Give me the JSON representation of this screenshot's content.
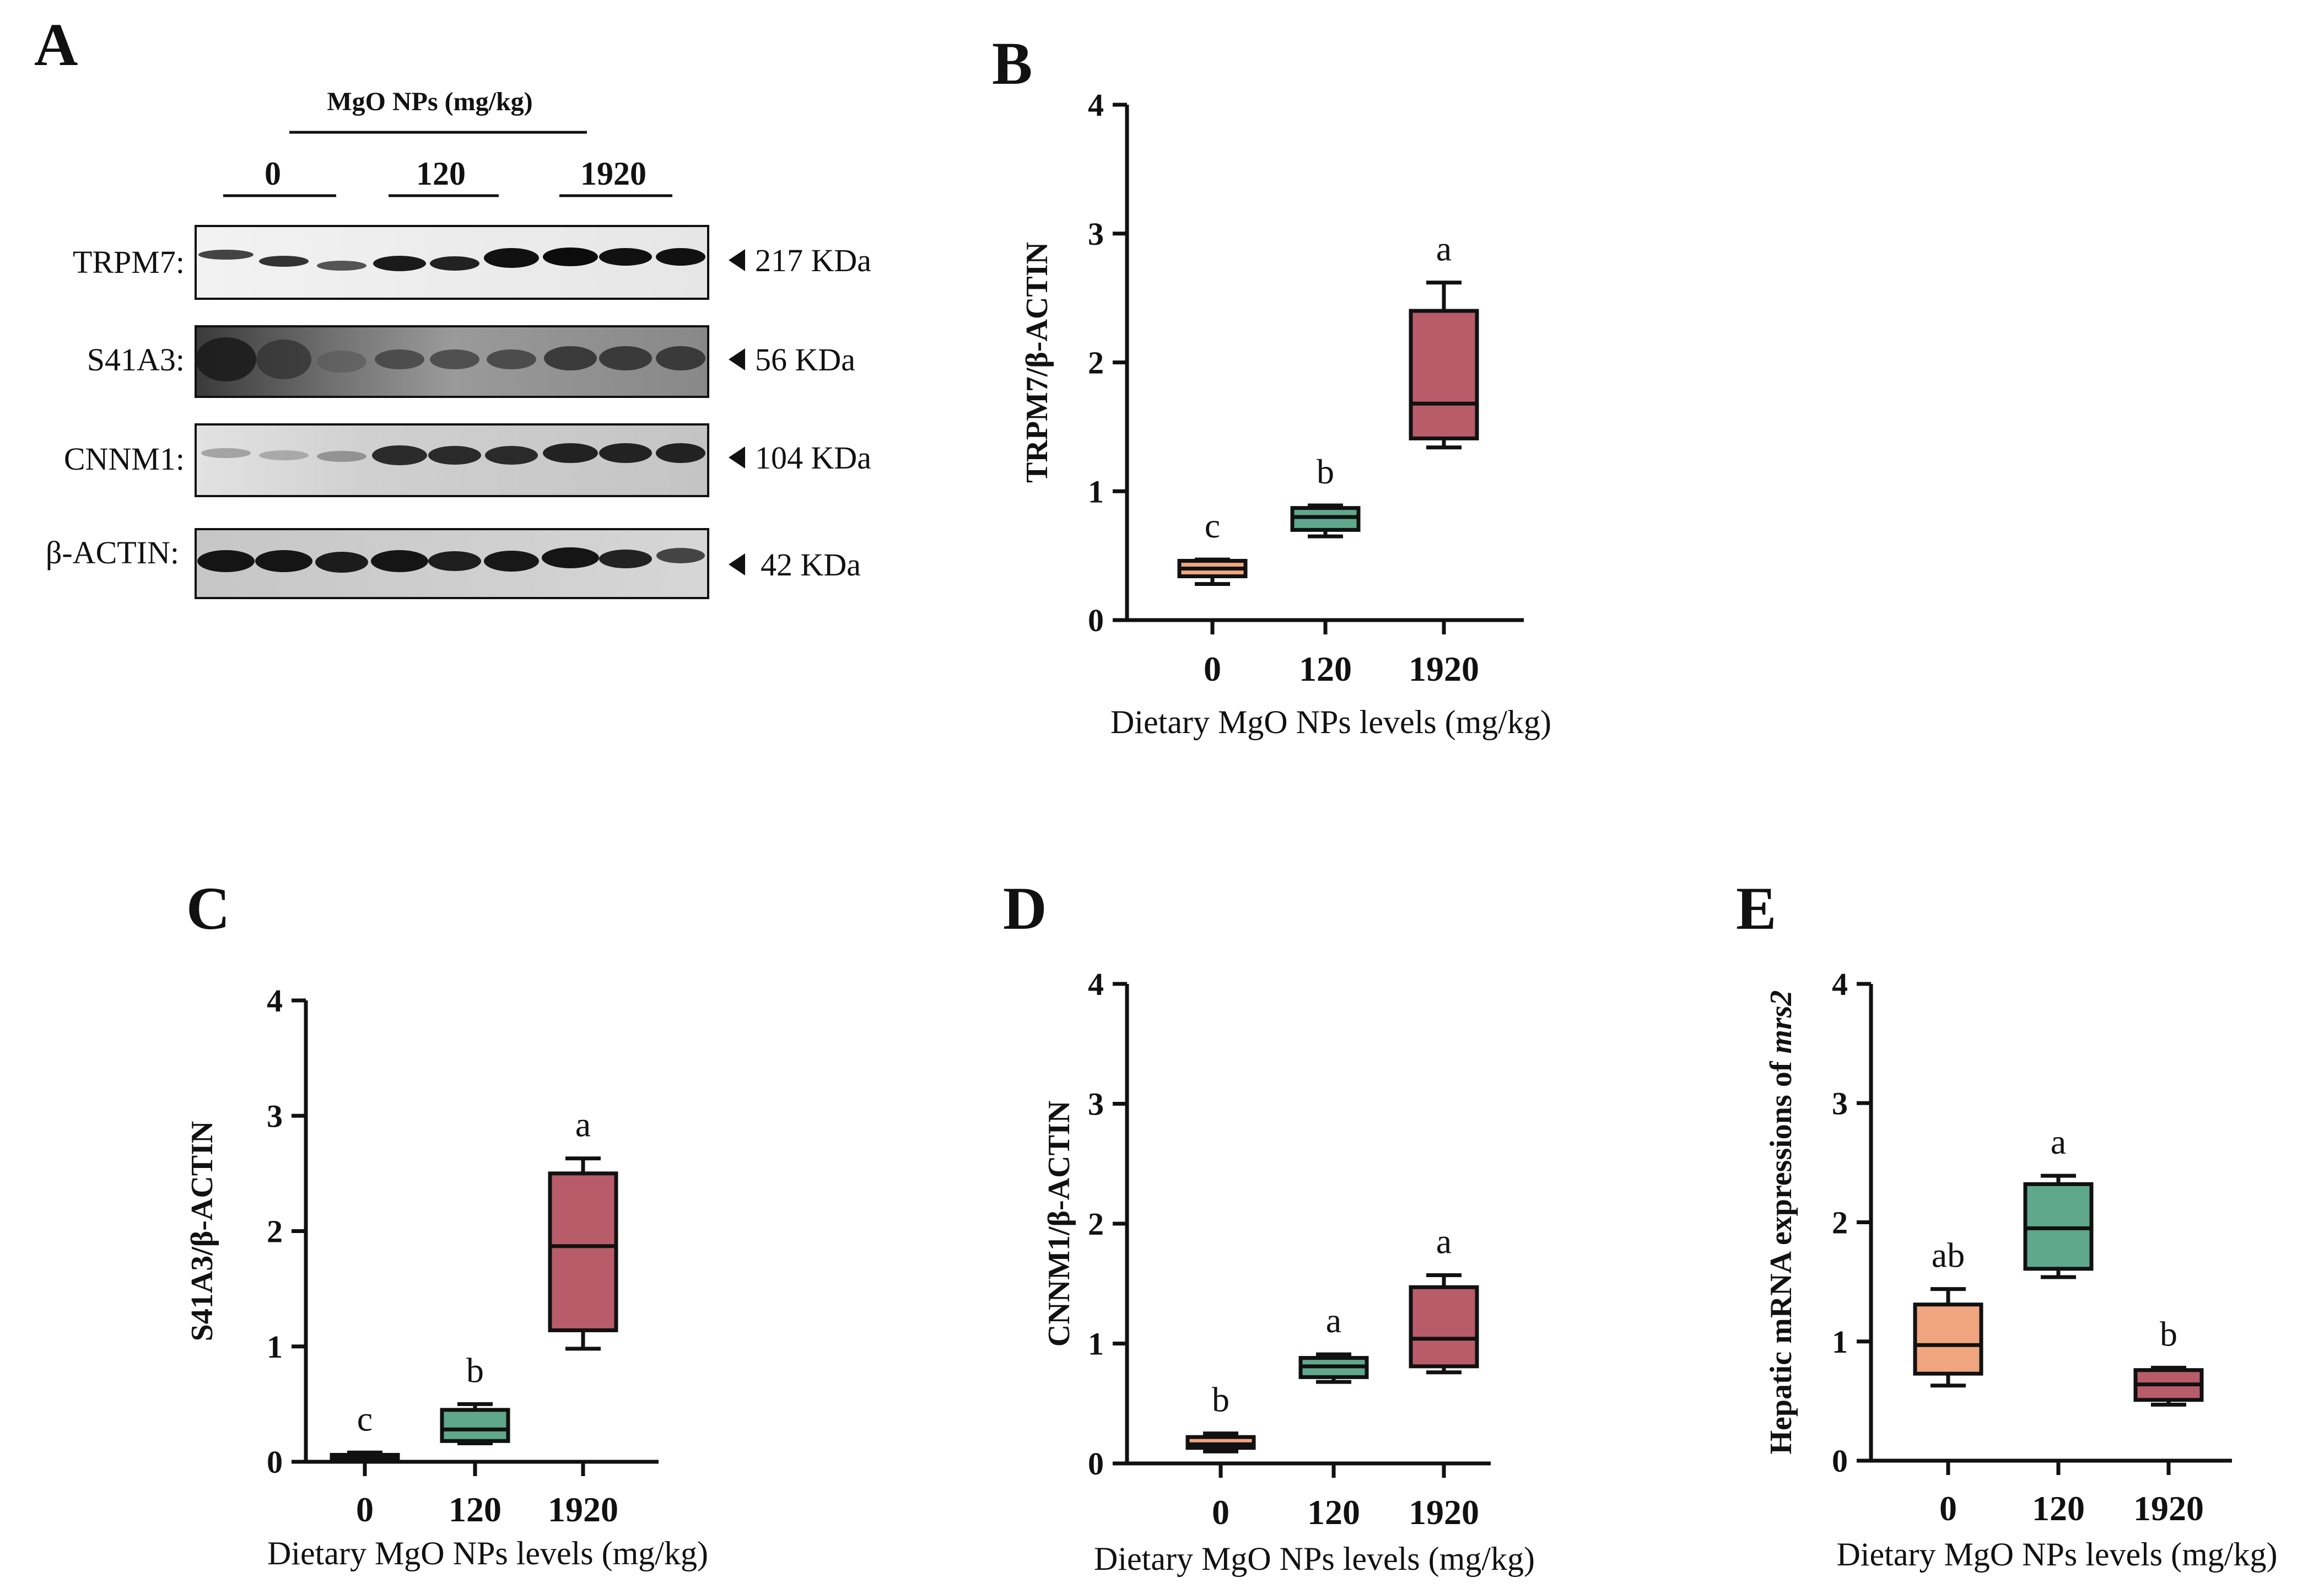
{
  "figure": {
    "panel_a": {
      "letter": "A",
      "treatment_header": "MgO NPs (mg/kg)",
      "groups": [
        "0",
        "120",
        "1920"
      ],
      "blots": [
        {
          "label": "TRPM7:",
          "size": "217 KDa"
        },
        {
          "label": "S41A3:",
          "size": "56 KDa"
        },
        {
          "label": "CNNM1:",
          "size": "104 KDa"
        },
        {
          "label": "β-ACTIN:",
          "size": "42 KDa"
        }
      ]
    },
    "panel_letters": {
      "b": "B",
      "c": "C",
      "d": "D",
      "e": "E"
    },
    "colors": {
      "g0": "#EFA67F",
      "g120": "#5FA88E",
      "g1920": "#B85C6A",
      "stroke": "#111111"
    }
  },
  "chart_data": [
    {
      "panel": "B",
      "type": "box",
      "categories": [
        "0",
        "120",
        "1920"
      ],
      "xlabel": "Dietary MgO NPs levels (mg/kg)",
      "ylabel": "TRPM7/β-ACTIN",
      "ylim": [
        0,
        4
      ],
      "yticks": [
        0,
        1,
        2,
        3,
        4
      ],
      "boxes": [
        {
          "min": 0.28,
          "q1": 0.34,
          "median": 0.4,
          "q3": 0.46,
          "max": 0.47,
          "letter": "c"
        },
        {
          "min": 0.65,
          "q1": 0.7,
          "median": 0.8,
          "q3": 0.87,
          "max": 0.89,
          "letter": "b"
        },
        {
          "min": 1.34,
          "q1": 1.41,
          "median": 1.68,
          "q3": 2.4,
          "max": 2.62,
          "letter": "a"
        }
      ]
    },
    {
      "panel": "C",
      "type": "box",
      "categories": [
        "0",
        "120",
        "1920"
      ],
      "xlabel": "Dietary MgO NPs levels (mg/kg)",
      "ylabel": "S41A3/β-ACTIN",
      "ylim": [
        0,
        4
      ],
      "yticks": [
        0,
        1,
        2,
        3,
        4
      ],
      "boxes": [
        {
          "min": 0.01,
          "q1": 0.02,
          "median": 0.04,
          "q3": 0.06,
          "max": 0.08,
          "letter": "c"
        },
        {
          "min": 0.16,
          "q1": 0.18,
          "median": 0.28,
          "q3": 0.45,
          "max": 0.5,
          "letter": "b"
        },
        {
          "min": 0.98,
          "q1": 1.14,
          "median": 1.87,
          "q3": 2.5,
          "max": 2.63,
          "letter": "a"
        }
      ]
    },
    {
      "panel": "D",
      "type": "box",
      "categories": [
        "0",
        "120",
        "1920"
      ],
      "xlabel": "Dietary MgO NPs levels (mg/kg)",
      "ylabel": "CNNM1/β-ACTIN",
      "ylim": [
        0,
        4
      ],
      "yticks": [
        0,
        1,
        2,
        3,
        4
      ],
      "boxes": [
        {
          "min": 0.1,
          "q1": 0.13,
          "median": 0.16,
          "q3": 0.22,
          "max": 0.25,
          "letter": "b"
        },
        {
          "min": 0.68,
          "q1": 0.72,
          "median": 0.81,
          "q3": 0.88,
          "max": 0.91,
          "letter": "a"
        },
        {
          "min": 0.76,
          "q1": 0.81,
          "median": 1.04,
          "q3": 1.47,
          "max": 1.57,
          "letter": "a"
        }
      ]
    },
    {
      "panel": "E",
      "type": "box",
      "categories": [
        "0",
        "120",
        "1920"
      ],
      "xlabel": "Dietary MgO NPs levels (mg/kg)",
      "ylabel": "Hepatic mRNA expressions of ",
      "ylabel_italic": "mrs2",
      "ylim": [
        0,
        4
      ],
      "yticks": [
        0,
        1,
        2,
        3,
        4
      ],
      "boxes": [
        {
          "min": 0.63,
          "q1": 0.73,
          "median": 0.97,
          "q3": 1.31,
          "max": 1.44,
          "letter": "ab"
        },
        {
          "min": 1.54,
          "q1": 1.61,
          "median": 1.95,
          "q3": 2.32,
          "max": 2.39,
          "letter": "a"
        },
        {
          "min": 0.47,
          "q1": 0.51,
          "median": 0.64,
          "q3": 0.76,
          "max": 0.78,
          "letter": "b"
        }
      ]
    }
  ]
}
